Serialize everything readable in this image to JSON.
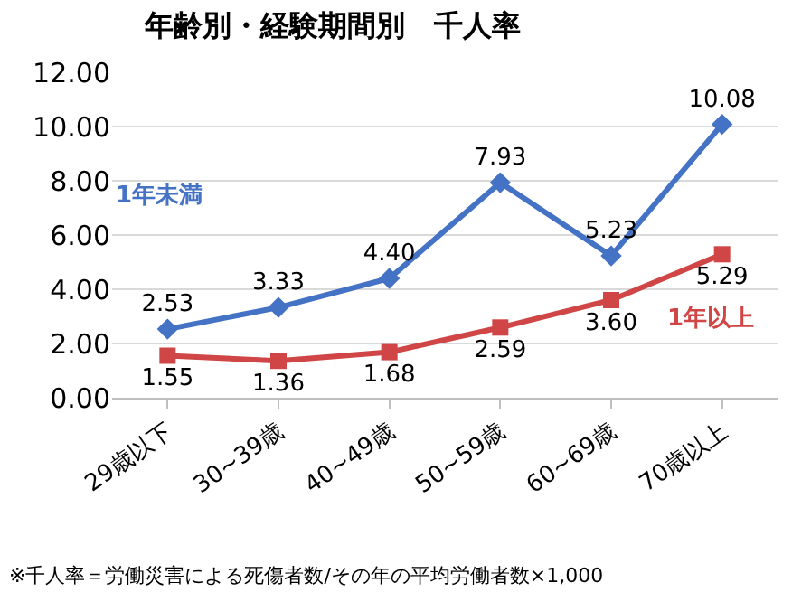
{
  "chart_data": {
    "type": "line",
    "title": "年齢別・経験期間別　千人率",
    "categories": [
      "29歳以下",
      "30~39歳",
      "40~49歳",
      "50~59歳",
      "60~69歳",
      "70歳以上"
    ],
    "series": [
      {
        "name": "1年未満",
        "color": "#4472c4",
        "marker": "diamond",
        "values": [
          2.53,
          3.33,
          4.4,
          7.93,
          5.23,
          10.08
        ],
        "value_labels": [
          "2.53",
          "3.33",
          "4.40",
          "7.93",
          "5.23",
          "10.08"
        ]
      },
      {
        "name": "1年以上",
        "color": "#d04545",
        "marker": "square",
        "values": [
          1.55,
          1.36,
          1.68,
          2.59,
          3.6,
          5.29
        ],
        "value_labels": [
          "1.55",
          "1.36",
          "1.68",
          "2.59",
          "3.60",
          "5.29"
        ]
      }
    ],
    "ylim": [
      0,
      12
    ],
    "yticks": [
      {
        "value": 0,
        "label": "0.00"
      },
      {
        "value": 2,
        "label": "2.00"
      },
      {
        "value": 4,
        "label": "4.00"
      },
      {
        "value": 6,
        "label": "6.00"
      },
      {
        "value": 8,
        "label": "8.00"
      },
      {
        "value": 10,
        "label": "10.00"
      },
      {
        "value": 12,
        "label": "12.00"
      }
    ],
    "grid": "y",
    "legend": false,
    "line_style": "solid",
    "annotations": [
      "※千人率＝労働災害による死傷者数/その年の平均労働者数×1,000"
    ]
  }
}
